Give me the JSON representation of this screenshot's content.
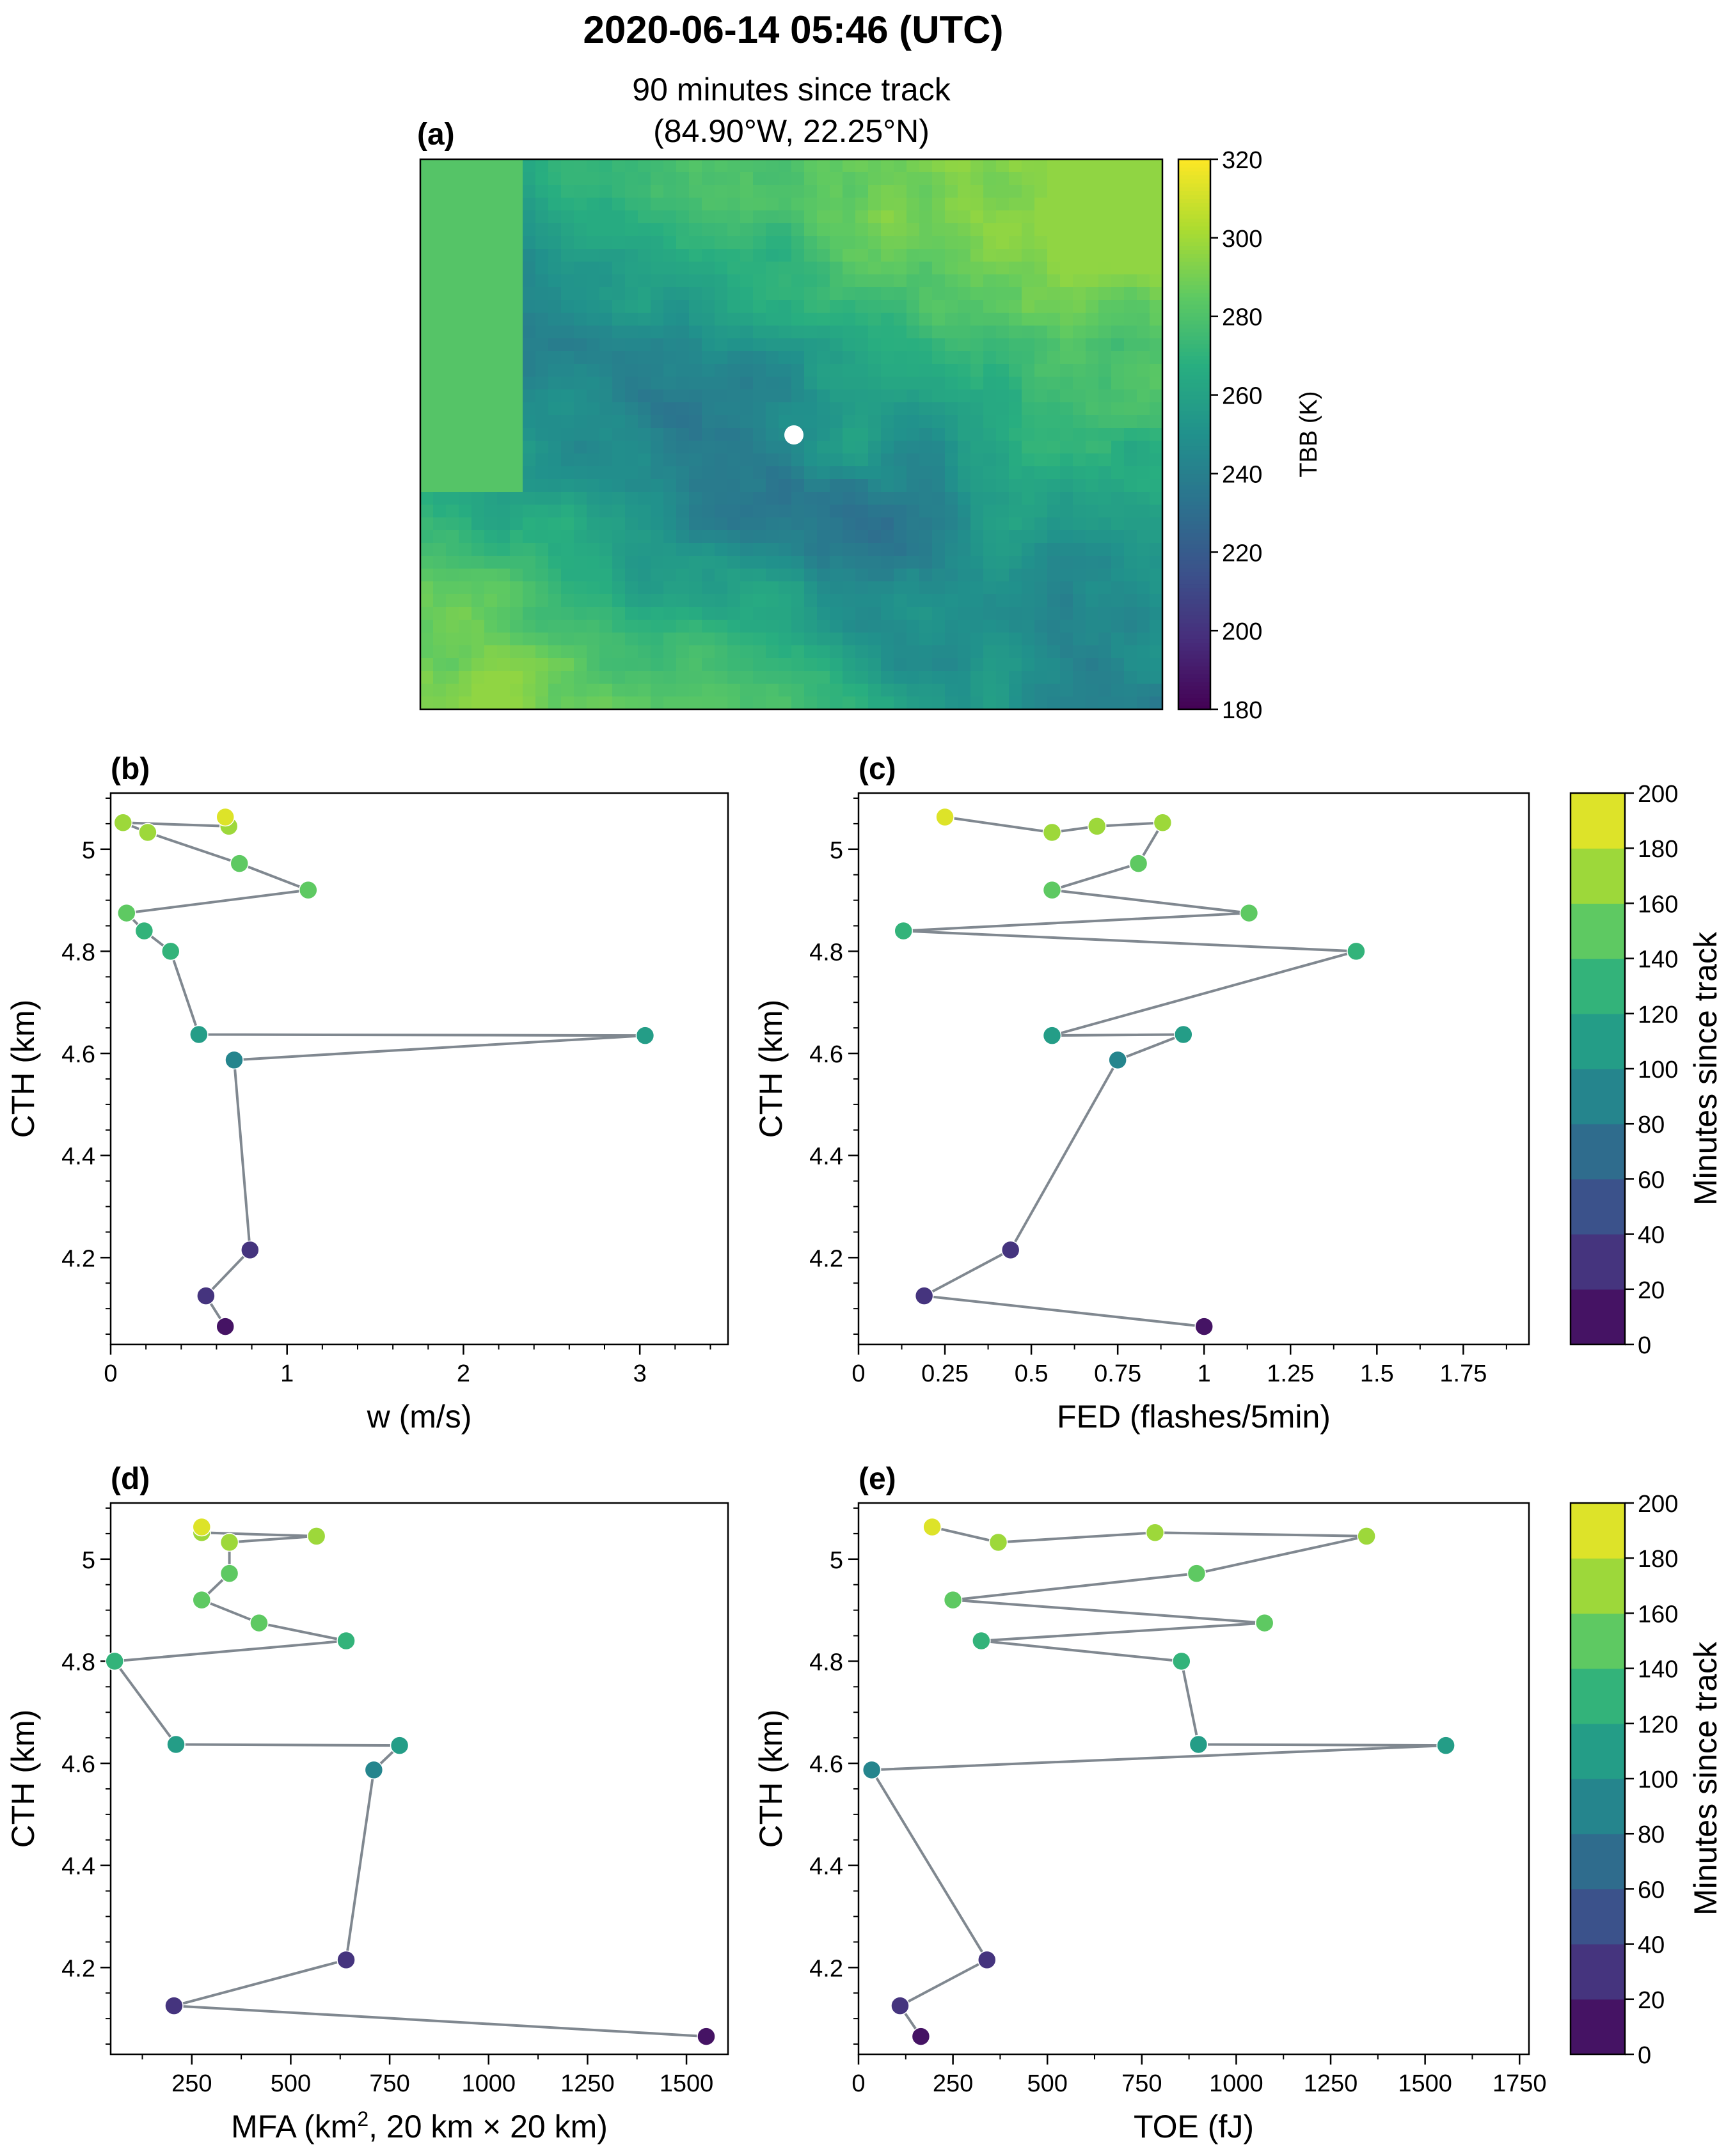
{
  "figure": {
    "title": "2020-06-14 05:46 (UTC)",
    "subtitle_line1": "90 minutes since track",
    "subtitle_line2": "(84.90°W, 22.25°N)"
  },
  "colors": {
    "line": "#808890",
    "marker_edge": "#ffffff",
    "viridis": [
      "#440154",
      "#472d7b",
      "#3b528b",
      "#2c728e",
      "#21918c",
      "#28ae80",
      "#5ec962",
      "#addc30",
      "#fde725"
    ]
  },
  "chart_data": [
    {
      "id": "a",
      "type": "heatmap",
      "panel_label": "(a)",
      "title": "90 minutes since track\n(84.90°W, 22.25°N)",
      "colorbar": {
        "label": "TBB (K)",
        "min": 180,
        "max": 320,
        "ticks": [
          180,
          200,
          220,
          240,
          260,
          280,
          300,
          320
        ],
        "colormap": "viridis"
      },
      "marker": {
        "label": "track center",
        "color": "#ffffff"
      },
      "grid": false
    },
    {
      "id": "b",
      "type": "scatter",
      "panel_label": "(b)",
      "xlabel": "w (m/s)",
      "ylabel": "CTH (km)",
      "xlim": [
        0,
        3.5
      ],
      "ylim": [
        4.03,
        5.11
      ],
      "xticks": [
        "0",
        "1",
        "2",
        "3"
      ],
      "xtick_values": [
        0,
        1,
        2,
        3
      ],
      "yticks": [
        "4.2",
        "4.4",
        "4.6",
        "4.8",
        "5"
      ],
      "ytick_values": [
        4.2,
        4.4,
        4.6,
        4.8,
        5.0
      ],
      "points": [
        {
          "x": 0.65,
          "y": 4.065,
          "minutes": 10
        },
        {
          "x": 0.54,
          "y": 4.125,
          "minutes": 20
        },
        {
          "x": 0.79,
          "y": 4.215,
          "minutes": 30
        },
        {
          "x": 0.7,
          "y": 4.587,
          "minutes": 90
        },
        {
          "x": 3.03,
          "y": 4.635,
          "minutes": 100
        },
        {
          "x": 0.5,
          "y": 4.637,
          "minutes": 100
        },
        {
          "x": 0.34,
          "y": 4.8,
          "minutes": 125
        },
        {
          "x": 0.19,
          "y": 4.84,
          "minutes": 135
        },
        {
          "x": 0.09,
          "y": 4.875,
          "minutes": 140
        },
        {
          "x": 1.12,
          "y": 4.92,
          "minutes": 150
        },
        {
          "x": 0.73,
          "y": 4.972,
          "minutes": 155
        },
        {
          "x": 0.21,
          "y": 5.033,
          "minutes": 165
        },
        {
          "x": 0.07,
          "y": 5.052,
          "minutes": 170
        },
        {
          "x": 0.67,
          "y": 5.045,
          "minutes": 175
        },
        {
          "x": 0.65,
          "y": 5.063,
          "minutes": 190
        }
      ]
    },
    {
      "id": "c",
      "type": "scatter",
      "panel_label": "(c)",
      "xlabel": "FED (flashes/5min)",
      "ylabel": "CTH (km)",
      "xlim": [
        0,
        1.94
      ],
      "ylim": [
        4.03,
        5.11
      ],
      "xticks": [
        "0",
        "0.25",
        "0.5",
        "0.75",
        "1",
        "1.25",
        "1.5",
        "1.75"
      ],
      "xtick_values": [
        0,
        0.25,
        0.5,
        0.75,
        1.0,
        1.25,
        1.5,
        1.75
      ],
      "yticks": [
        "4.2",
        "4.4",
        "4.6",
        "4.8",
        "5"
      ],
      "ytick_values": [
        4.2,
        4.4,
        4.6,
        4.8,
        5.0
      ],
      "colorbar": {
        "label": "Minutes since track",
        "min": 0,
        "max": 200,
        "ticks": [
          0,
          20,
          40,
          60,
          80,
          100,
          120,
          140,
          160,
          180,
          200
        ]
      },
      "points": [
        {
          "x": 1.0,
          "y": 4.065,
          "minutes": 10
        },
        {
          "x": 0.19,
          "y": 4.125,
          "minutes": 20
        },
        {
          "x": 0.44,
          "y": 4.215,
          "minutes": 30
        },
        {
          "x": 0.75,
          "y": 4.587,
          "minutes": 90
        },
        {
          "x": 0.94,
          "y": 4.637,
          "minutes": 100
        },
        {
          "x": 0.56,
          "y": 4.635,
          "minutes": 100
        },
        {
          "x": 1.44,
          "y": 4.8,
          "minutes": 125
        },
        {
          "x": 0.13,
          "y": 4.84,
          "minutes": 135
        },
        {
          "x": 1.13,
          "y": 4.875,
          "minutes": 140
        },
        {
          "x": 0.56,
          "y": 4.92,
          "minutes": 150
        },
        {
          "x": 0.81,
          "y": 4.972,
          "minutes": 155
        },
        {
          "x": 0.88,
          "y": 5.052,
          "minutes": 165
        },
        {
          "x": 0.69,
          "y": 5.045,
          "minutes": 170
        },
        {
          "x": 0.56,
          "y": 5.033,
          "minutes": 175
        },
        {
          "x": 0.25,
          "y": 5.063,
          "minutes": 190
        }
      ]
    },
    {
      "id": "d",
      "type": "scatter",
      "panel_label": "(d)",
      "xlabel": "MFA (km², 20 km × 20 km)",
      "ylabel": "CTH (km)",
      "xlim": [
        45,
        1605
      ],
      "ylim": [
        4.03,
        5.11
      ],
      "xticks": [
        "250",
        "500",
        "750",
        "1000",
        "1250",
        "1500"
      ],
      "xtick_values": [
        250,
        500,
        750,
        1000,
        1250,
        1500
      ],
      "yticks": [
        "4.2",
        "4.4",
        "4.6",
        "4.8",
        "5"
      ],
      "ytick_values": [
        4.2,
        4.4,
        4.6,
        4.8,
        5.0
      ],
      "points": [
        {
          "x": 1550,
          "y": 4.065,
          "minutes": 10
        },
        {
          "x": 205,
          "y": 4.125,
          "minutes": 20
        },
        {
          "x": 640,
          "y": 4.215,
          "minutes": 30
        },
        {
          "x": 710,
          "y": 4.587,
          "minutes": 90
        },
        {
          "x": 775,
          "y": 4.635,
          "minutes": 100
        },
        {
          "x": 210,
          "y": 4.637,
          "minutes": 100
        },
        {
          "x": 55,
          "y": 4.8,
          "minutes": 125
        },
        {
          "x": 640,
          "y": 4.84,
          "minutes": 135
        },
        {
          "x": 420,
          "y": 4.875,
          "minutes": 140
        },
        {
          "x": 275,
          "y": 4.92,
          "minutes": 150
        },
        {
          "x": 345,
          "y": 4.972,
          "minutes": 155
        },
        {
          "x": 345,
          "y": 5.033,
          "minutes": 165
        },
        {
          "x": 565,
          "y": 5.045,
          "minutes": 170
        },
        {
          "x": 275,
          "y": 5.052,
          "minutes": 175
        },
        {
          "x": 275,
          "y": 5.063,
          "minutes": 190
        }
      ]
    },
    {
      "id": "e",
      "type": "scatter",
      "panel_label": "(e)",
      "xlabel": "TOE (fJ)",
      "ylabel": "CTH (km)",
      "xlim": [
        0,
        1775
      ],
      "ylim": [
        4.03,
        5.11
      ],
      "xticks": [
        "0",
        "250",
        "500",
        "750",
        "1000",
        "1250",
        "1500",
        "1750"
      ],
      "xtick_values": [
        0,
        250,
        500,
        750,
        1000,
        1250,
        1500,
        1750
      ],
      "yticks": [
        "4.2",
        "4.4",
        "4.6",
        "4.8",
        "5"
      ],
      "ytick_values": [
        4.2,
        4.4,
        4.6,
        4.8,
        5.0
      ],
      "colorbar": {
        "label": "Minutes since track",
        "min": 0,
        "max": 200,
        "ticks": [
          0,
          20,
          40,
          60,
          80,
          100,
          120,
          140,
          160,
          180,
          200
        ]
      },
      "points": [
        {
          "x": 165,
          "y": 4.065,
          "minutes": 10
        },
        {
          "x": 110,
          "y": 4.125,
          "minutes": 20
        },
        {
          "x": 340,
          "y": 4.215,
          "minutes": 30
        },
        {
          "x": 35,
          "y": 4.587,
          "minutes": 90
        },
        {
          "x": 1555,
          "y": 4.635,
          "minutes": 100
        },
        {
          "x": 900,
          "y": 4.637,
          "minutes": 100
        },
        {
          "x": 855,
          "y": 4.8,
          "minutes": 125
        },
        {
          "x": 325,
          "y": 4.84,
          "minutes": 135
        },
        {
          "x": 1075,
          "y": 4.875,
          "minutes": 140
        },
        {
          "x": 250,
          "y": 4.92,
          "minutes": 150
        },
        {
          "x": 895,
          "y": 4.972,
          "minutes": 155
        },
        {
          "x": 1345,
          "y": 5.045,
          "minutes": 165
        },
        {
          "x": 785,
          "y": 5.052,
          "minutes": 170
        },
        {
          "x": 370,
          "y": 5.033,
          "minutes": 175
        },
        {
          "x": 195,
          "y": 5.063,
          "minutes": 190
        }
      ]
    }
  ]
}
